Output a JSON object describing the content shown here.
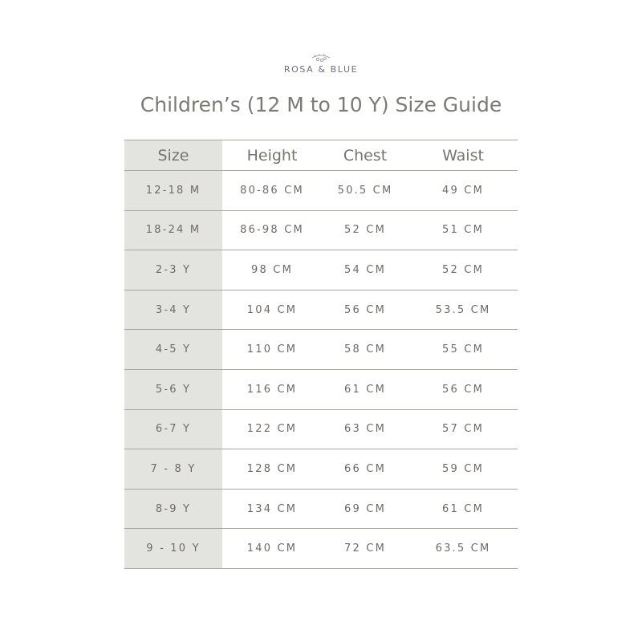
{
  "brand": "ROSA & BLUE",
  "title": "Children’s (12 M to 10 Y) Size Guide",
  "headers": [
    "Size",
    "Height",
    "Chest",
    "Waist"
  ],
  "rows": [
    [
      "12-18 M",
      "80-86 CM",
      "50.5 CM",
      "49 CM"
    ],
    [
      "18-24 M",
      "86-98 CM",
      "52 CM",
      "51 CM"
    ],
    [
      "2-3 Y",
      "98 CM",
      "54 CM",
      "52 CM"
    ],
    [
      "3-4 Y",
      "104 CM",
      "56 CM",
      "53.5 CM"
    ],
    [
      "4-5 Y",
      "110 CM",
      "58 CM",
      "55 CM"
    ],
    [
      "5-6 Y",
      "116 CM",
      "61 CM",
      "56 CM"
    ],
    [
      "6-7 Y",
      "122 CM",
      "63 CM",
      "57 CM"
    ],
    [
      "7 - 8 Y",
      "128 CM",
      "66 CM",
      "59 CM"
    ],
    [
      "8-9 Y",
      "134 CM",
      "69 CM",
      "61 CM"
    ],
    [
      "9 - 10 Y",
      "140 CM",
      "72 CM",
      "63.5 CM"
    ]
  ],
  "colors": {
    "size_column_bg": "#e3e3df",
    "text": "#7a7773",
    "rule": "#a9a6a2"
  }
}
